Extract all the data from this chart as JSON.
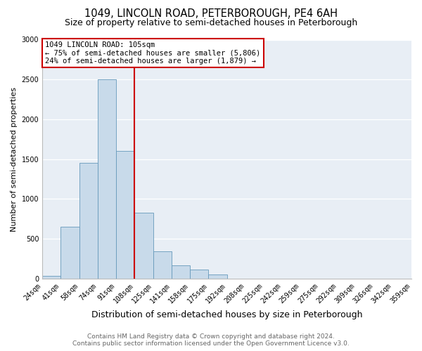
{
  "title": "1049, LINCOLN ROAD, PETERBOROUGH, PE4 6AH",
  "subtitle": "Size of property relative to semi-detached houses in Peterborough",
  "xlabel": "Distribution of semi-detached houses by size in Peterborough",
  "ylabel": "Number of semi-detached properties",
  "bin_labels": [
    "24sqm",
    "41sqm",
    "58sqm",
    "74sqm",
    "91sqm",
    "108sqm",
    "125sqm",
    "141sqm",
    "158sqm",
    "175sqm",
    "192sqm",
    "208sqm",
    "225sqm",
    "242sqm",
    "259sqm",
    "275sqm",
    "292sqm",
    "309sqm",
    "326sqm",
    "342sqm",
    "359sqm"
  ],
  "bar_heights": [
    35,
    650,
    1450,
    2500,
    1600,
    830,
    340,
    170,
    115,
    50,
    0,
    0,
    0,
    0,
    0,
    0,
    0,
    0,
    0,
    0
  ],
  "bar_color": "#c8daea",
  "bar_edge_color": "#6699bb",
  "vline_x": 5,
  "vline_color": "#cc0000",
  "annotation_line1": "1049 LINCOLN ROAD: 105sqm",
  "annotation_line2": "← 75% of semi-detached houses are smaller (5,806)",
  "annotation_line3": "24% of semi-detached houses are larger (1,879) →",
  "ylim": [
    0,
    3000
  ],
  "yticks": [
    0,
    500,
    1000,
    1500,
    2000,
    2500,
    3000
  ],
  "background_color": "#ffffff",
  "plot_bg_color": "#e8eef5",
  "title_fontsize": 10.5,
  "subtitle_fontsize": 9,
  "xlabel_fontsize": 9,
  "ylabel_fontsize": 8,
  "tick_fontsize": 7,
  "ann_fontsize": 7.5,
  "footer_fontsize": 6.5,
  "footer_line1": "Contains HM Land Registry data © Crown copyright and database right 2024.",
  "footer_line2": "Contains public sector information licensed under the Open Government Licence v3.0."
}
